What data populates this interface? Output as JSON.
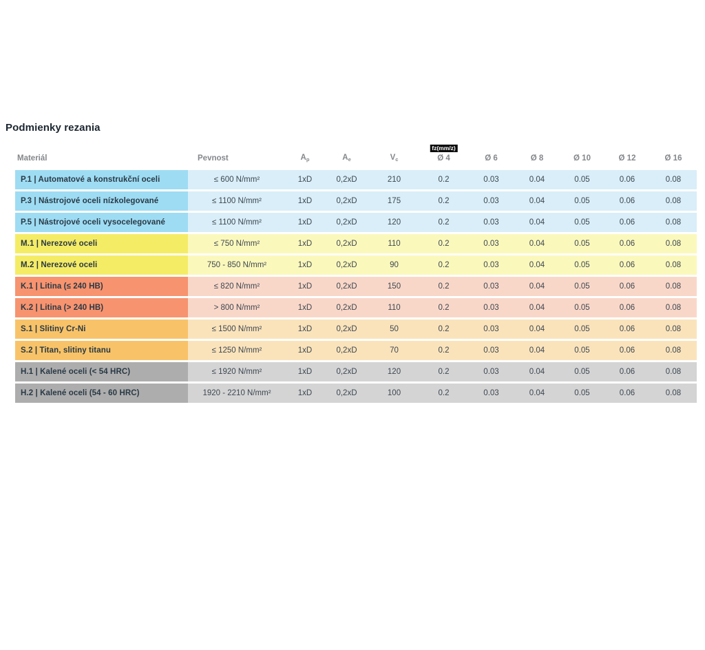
{
  "title": "Podmienky rezania",
  "colors": {
    "P": {
      "strong": "#9edcf3",
      "light": "#d9eef8"
    },
    "M": {
      "strong": "#f5ec66",
      "light": "#fbf8bc"
    },
    "K": {
      "strong": "#f7936f",
      "light": "#f9d7c8"
    },
    "S": {
      "strong": "#f8c368",
      "light": "#fae3bb"
    },
    "H": {
      "strong": "#adadad",
      "light": "#d4d4d4"
    }
  },
  "header": {
    "material": "Materiál",
    "pevnost": "Pevnost",
    "ap": {
      "base": "A",
      "sub": "p"
    },
    "ae": {
      "base": "A",
      "sub": "e"
    },
    "vc": {
      "base": "V",
      "sub": "c"
    },
    "fz_badge": "fz(mm/z)",
    "diameters": [
      "Ø 4",
      "Ø 6",
      "Ø 8",
      "Ø 10",
      "Ø 12",
      "Ø 16"
    ]
  },
  "rows": [
    {
      "group": "P",
      "material": "P.1 | Automatové a konstrukční oceli",
      "pevnost": "≤ 600 N/mm²",
      "ap": "1xD",
      "ae": "0,2xD",
      "vc": "210",
      "fz": [
        "0.2",
        "0.03",
        "0.04",
        "0.05",
        "0.06",
        "0.08"
      ]
    },
    {
      "group": "P",
      "material": "P.3 | Nástrojové oceli nízkolegované",
      "pevnost": "≤ 1100 N/mm²",
      "ap": "1xD",
      "ae": "0,2xD",
      "vc": "175",
      "fz": [
        "0.2",
        "0.03",
        "0.04",
        "0.05",
        "0.06",
        "0.08"
      ]
    },
    {
      "group": "P",
      "material": "P.5 | Nástrojové oceli vysocelegované",
      "pevnost": "≤ 1100 N/mm²",
      "ap": "1xD",
      "ae": "0,2xD",
      "vc": "120",
      "fz": [
        "0.2",
        "0.03",
        "0.04",
        "0.05",
        "0.06",
        "0.08"
      ]
    },
    {
      "group": "M",
      "material": "M.1 | Nerezové oceli",
      "pevnost": "≤ 750 N/mm²",
      "ap": "1xD",
      "ae": "0,2xD",
      "vc": "110",
      "fz": [
        "0.2",
        "0.03",
        "0.04",
        "0.05",
        "0.06",
        "0.08"
      ]
    },
    {
      "group": "M",
      "material": "M.2 | Nerezové oceli",
      "pevnost": "750 - 850 N/mm²",
      "ap": "1xD",
      "ae": "0,2xD",
      "vc": "90",
      "fz": [
        "0.2",
        "0.03",
        "0.04",
        "0.05",
        "0.06",
        "0.08"
      ]
    },
    {
      "group": "K",
      "material": "K.1 | Litina (≤ 240 HB)",
      "pevnost": "≤ 820 N/mm²",
      "ap": "1xD",
      "ae": "0,2xD",
      "vc": "150",
      "fz": [
        "0.2",
        "0.03",
        "0.04",
        "0.05",
        "0.06",
        "0.08"
      ]
    },
    {
      "group": "K",
      "material": "K.2 | Litina (> 240 HB)",
      "pevnost": "> 800 N/mm²",
      "ap": "1xD",
      "ae": "0,2xD",
      "vc": "110",
      "fz": [
        "0.2",
        "0.03",
        "0.04",
        "0.05",
        "0.06",
        "0.08"
      ]
    },
    {
      "group": "S",
      "material": "S.1 | Slitiny Cr-Ni",
      "pevnost": "≤ 1500 N/mm²",
      "ap": "1xD",
      "ae": "0,2xD",
      "vc": "50",
      "fz": [
        "0.2",
        "0.03",
        "0.04",
        "0.05",
        "0.06",
        "0.08"
      ]
    },
    {
      "group": "S",
      "material": "S.2 | Titan, slitiny titanu",
      "pevnost": "≤ 1250 N/mm²",
      "ap": "1xD",
      "ae": "0,2xD",
      "vc": "70",
      "fz": [
        "0.2",
        "0.03",
        "0.04",
        "0.05",
        "0.06",
        "0.08"
      ]
    },
    {
      "group": "H",
      "material": "H.1 | Kalené oceli (< 54 HRC)",
      "pevnost": "≤ 1920 N/mm²",
      "ap": "1xD",
      "ae": "0,2xD",
      "vc": "120",
      "fz": [
        "0.2",
        "0.03",
        "0.04",
        "0.05",
        "0.06",
        "0.08"
      ]
    },
    {
      "group": "H",
      "material": "H.2 | Kalené oceli (54 - 60 HRC)",
      "pevnost": "1920 - 2210 N/mm²",
      "ap": "1xD",
      "ae": "0,2xD",
      "vc": "100",
      "fz": [
        "0.2",
        "0.03",
        "0.04",
        "0.05",
        "0.06",
        "0.08"
      ]
    }
  ]
}
